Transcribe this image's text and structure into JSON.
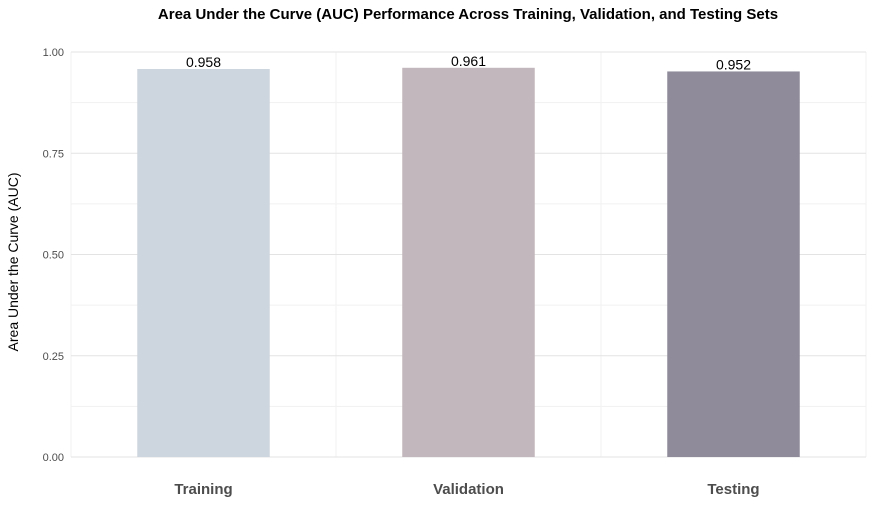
{
  "chart_data": {
    "type": "bar",
    "title": "Area Under the Curve (AUC) Performance Across Training, Validation, and Testing Sets",
    "xlabel": "",
    "ylabel": "Area Under the Curve (AUC)",
    "categories": [
      "Training",
      "Validation",
      "Testing"
    ],
    "values": [
      0.958,
      0.961,
      0.952
    ],
    "data_labels": [
      "0.958",
      "0.961",
      "0.952"
    ],
    "colors": [
      "#cdd5de",
      "#c2b7bc",
      "#8f8b9b"
    ],
    "ylim": [
      0,
      1
    ],
    "yticks": [
      0,
      0.25,
      0.5,
      0.75,
      1.0
    ],
    "ytick_labels": [
      "0.00",
      "0.25",
      "0.50",
      "0.75",
      "1.00"
    ],
    "grid": true,
    "legend": "none"
  }
}
